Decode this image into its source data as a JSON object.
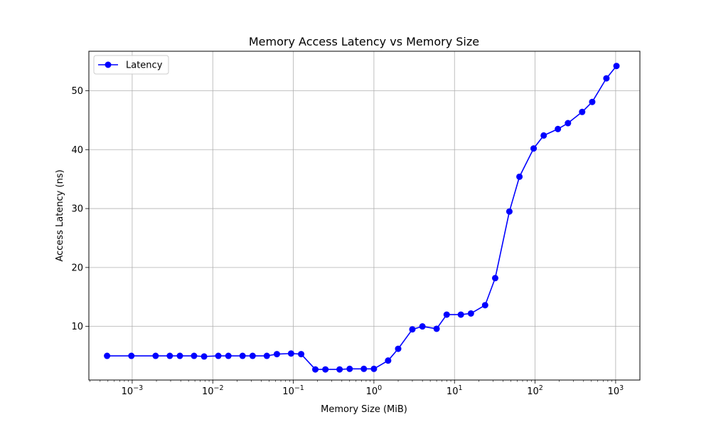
{
  "chart_data": {
    "type": "line",
    "title": "Memory Access Latency vs Memory Size",
    "xlabel": "Memory Size (MiB)",
    "ylabel": "Access Latency (ns)",
    "xscale": "log",
    "xlim": [
      0.00029,
      2000
    ],
    "ylim": [
      0.9,
      56.7
    ],
    "grid": true,
    "legend_position": "top-left",
    "x_ticks": [
      {
        "value": 0.001,
        "base": "10",
        "exp": "−3"
      },
      {
        "value": 0.01,
        "base": "10",
        "exp": "−2"
      },
      {
        "value": 0.1,
        "base": "10",
        "exp": "−1"
      },
      {
        "value": 1,
        "base": "10",
        "exp": "0"
      },
      {
        "value": 10,
        "base": "10",
        "exp": "1"
      },
      {
        "value": 100,
        "base": "10",
        "exp": "2"
      },
      {
        "value": 1000,
        "base": "10",
        "exp": "3"
      }
    ],
    "y_ticks": [
      {
        "value": 10,
        "label": "10"
      },
      {
        "value": 20,
        "label": "20"
      },
      {
        "value": 30,
        "label": "30"
      },
      {
        "value": 40,
        "label": "40"
      },
      {
        "value": 50,
        "label": "50"
      }
    ],
    "series": [
      {
        "name": "Latency",
        "color": "#0000ff",
        "marker": "circle",
        "x": [
          0.000488,
          0.000977,
          0.001953,
          0.00293,
          0.003906,
          0.005859,
          0.007813,
          0.011719,
          0.015625,
          0.023438,
          0.03125,
          0.046875,
          0.0625,
          0.09375,
          0.125,
          0.1875,
          0.25,
          0.375,
          0.5,
          0.75,
          1,
          1.5,
          2,
          3,
          4,
          6,
          8,
          12,
          16,
          24,
          32,
          48,
          64,
          96,
          128,
          192,
          256,
          384,
          512,
          768,
          1024
        ],
        "y": [
          5.0,
          5.0,
          5.0,
          5.0,
          5.0,
          5.0,
          4.9,
          5.0,
          5.0,
          5.0,
          5.0,
          5.0,
          5.3,
          5.4,
          5.3,
          2.7,
          2.7,
          2.7,
          2.8,
          2.8,
          2.8,
          4.2,
          6.2,
          9.5,
          10.0,
          9.6,
          12.0,
          12.0,
          12.2,
          13.6,
          18.2,
          29.5,
          35.4,
          40.2,
          42.4,
          43.5,
          44.5,
          46.4,
          48.1,
          52.1,
          54.2
        ]
      }
    ]
  }
}
